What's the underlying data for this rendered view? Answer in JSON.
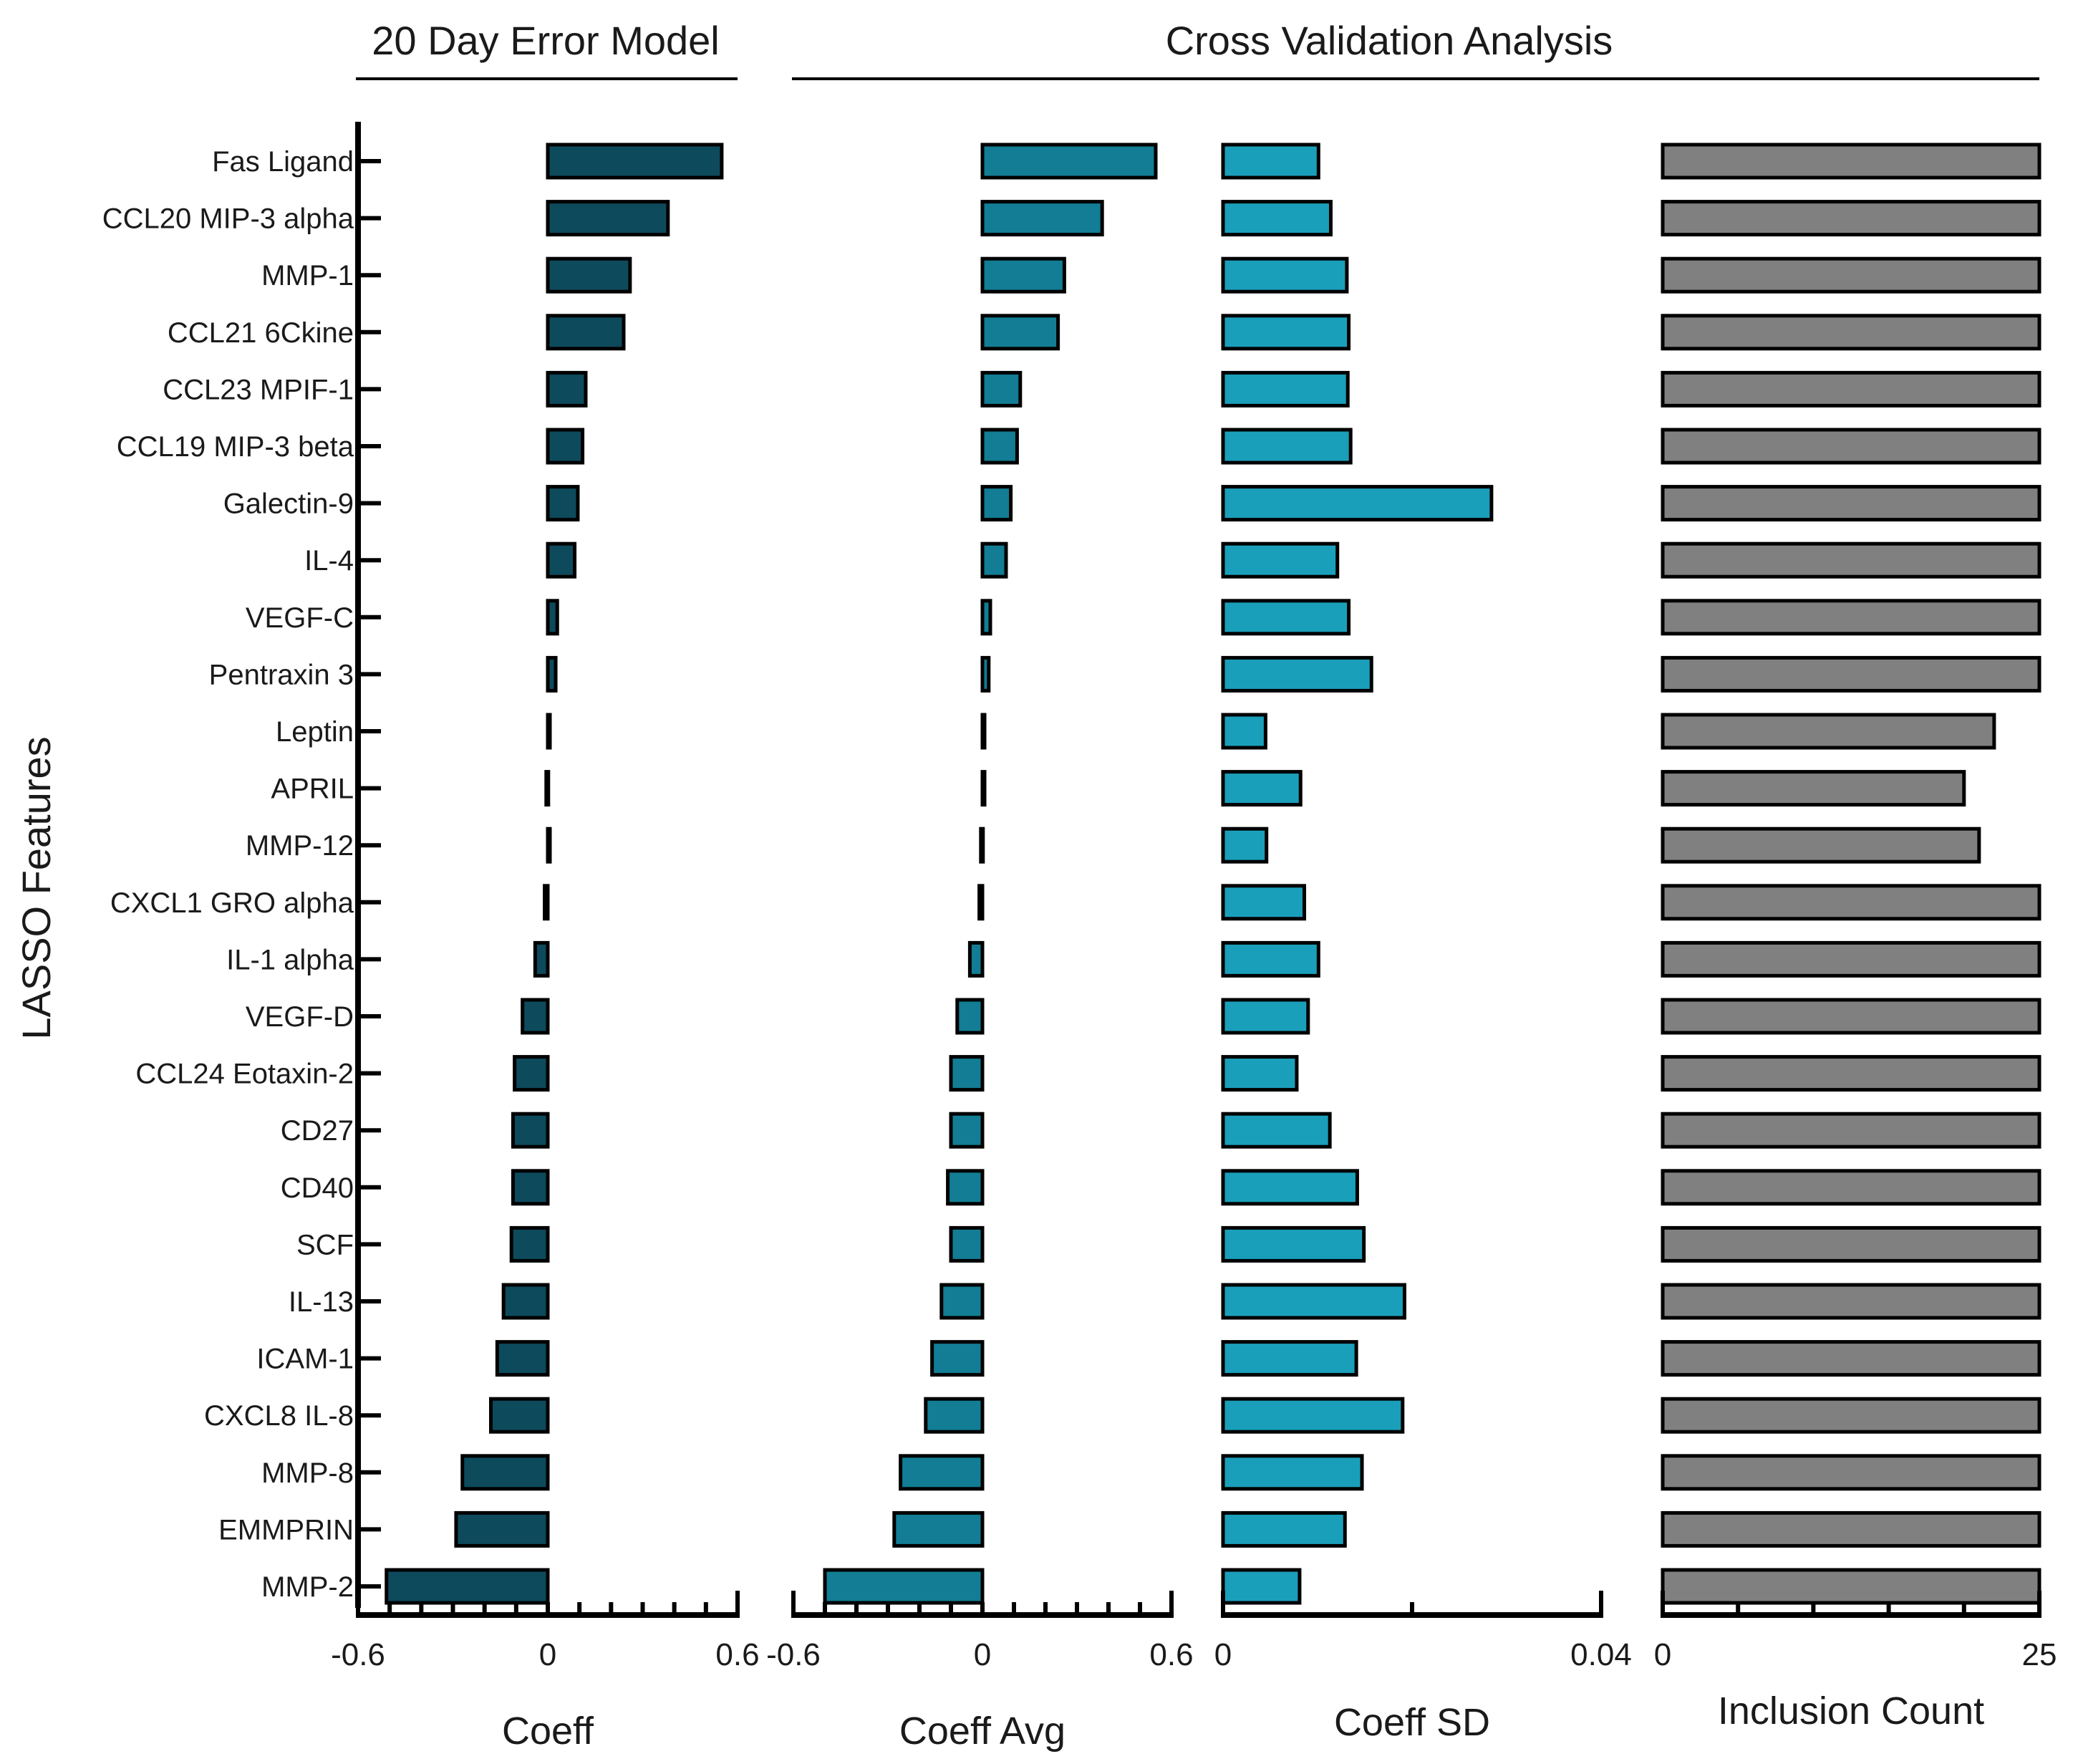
{
  "chart_data": {
    "type": "bar",
    "orientation": "horizontal",
    "y_axis_label": "LASSO Features",
    "categories": [
      "Fas Ligand",
      "CCL20 MIP-3 alpha",
      "MMP-1",
      "CCL21 6Ckine",
      "CCL23 MPIF-1",
      "CCL19 MIP-3 beta",
      "Galectin-9",
      "IL-4",
      "VEGF-C",
      "Pentraxin 3",
      "Leptin",
      "APRIL",
      "MMP-12",
      "CXCL1 GRO alpha",
      "IL-1 alpha",
      "VEGF-D",
      "CCL24 Eotaxin-2",
      "CD27",
      "CD40",
      "SCF",
      "IL-13",
      "ICAM-1",
      "CXCL8 IL-8",
      "MMP-8",
      "EMMPRIN",
      "MMP-2"
    ],
    "group_titles": {
      "model": "20 Day Error Model",
      "cv": "Cross Validation Analysis"
    },
    "panels": [
      {
        "name": "Coeff",
        "xlabel": "Coeff",
        "xlim": [
          -0.6,
          0.6
        ],
        "tick_labels": [
          "-0.6",
          "0",
          "0.6"
        ],
        "color": "#0d4a5c",
        "values": [
          0.55,
          0.38,
          0.26,
          0.24,
          0.12,
          0.11,
          0.095,
          0.085,
          0.03,
          0.025,
          0.005,
          -0.005,
          0.005,
          -0.01,
          -0.04,
          -0.08,
          -0.105,
          -0.11,
          -0.11,
          -0.115,
          -0.14,
          -0.16,
          -0.18,
          -0.27,
          -0.29,
          -0.51
        ]
      },
      {
        "name": "Coeff Avg",
        "xlabel": "Coeff Avg",
        "xlim": [
          -0.6,
          0.6
        ],
        "tick_labels": [
          "-0.6",
          "0",
          "0.6"
        ],
        "color": "#127d94",
        "values": [
          0.55,
          0.38,
          0.26,
          0.24,
          0.12,
          0.11,
          0.09,
          0.075,
          0.025,
          0.02,
          0.005,
          0.005,
          -0.005,
          -0.01,
          -0.04,
          -0.08,
          -0.1,
          -0.1,
          -0.11,
          -0.1,
          -0.13,
          -0.16,
          -0.18,
          -0.26,
          -0.28,
          -0.5
        ]
      },
      {
        "name": "Coeff SD",
        "xlabel": "Coeff SD",
        "xlim": [
          0,
          0.04
        ],
        "tick_labels": [
          "0",
          "0.04"
        ],
        "color": "#1a9fba",
        "values": [
          0.0101,
          0.0114,
          0.0131,
          0.0133,
          0.0132,
          0.0135,
          0.0284,
          0.0121,
          0.0133,
          0.0157,
          0.0045,
          0.0082,
          0.0046,
          0.0086,
          0.0101,
          0.009,
          0.0078,
          0.0113,
          0.0142,
          0.0149,
          0.0192,
          0.0141,
          0.019,
          0.0147,
          0.0129,
          0.0081
        ]
      },
      {
        "name": "Inclusion Count",
        "xlabel": "Inclusion  Count",
        "xlim": [
          0,
          25
        ],
        "tick_labels": [
          "0",
          "25"
        ],
        "color": "#808080",
        "values": [
          25,
          25,
          25,
          25,
          25,
          25,
          25,
          25,
          25,
          25,
          22,
          20,
          21,
          25,
          25,
          25,
          25,
          25,
          25,
          25,
          25,
          25,
          25,
          25,
          25,
          25
        ]
      }
    ]
  }
}
